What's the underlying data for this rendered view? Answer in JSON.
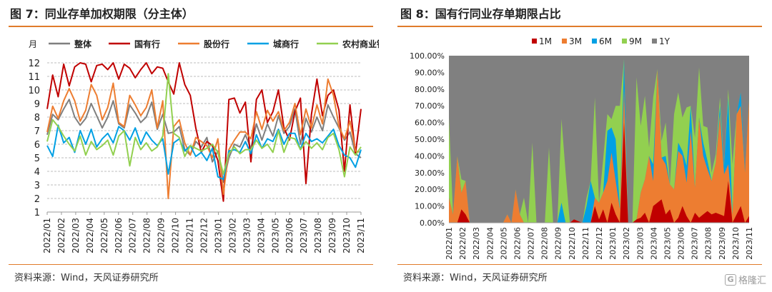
{
  "left": {
    "title": "图 7：同业存单加权期限（分主体）",
    "source": "资料来源：Wind，天风证券研究所"
  },
  "right": {
    "title": "图 8：国有行同业存单期限占比",
    "source": "资料来源：Wind，天风证券研究所"
  },
  "watermark": {
    "icon": "G",
    "text": "格隆汇"
  },
  "chart_data": [
    {
      "type": "line",
      "ylabel": "月",
      "ylim": [
        1,
        12
      ],
      "yticks": [
        1,
        2,
        3,
        4,
        5,
        6,
        7,
        8,
        9,
        10,
        11,
        12
      ],
      "grid": "horizontal-dashed",
      "legend_placement": "top",
      "x_ticks": [
        "2022/01",
        "2022/02",
        "2022/03",
        "2022/04",
        "2022/05",
        "2022/06",
        "2022/07",
        "2022/08",
        "2022/09",
        "2022/10",
        "2022/11",
        "2022/12",
        "2023/01",
        "2023/02",
        "2023/03",
        "2023/04",
        "2023/05",
        "2023/06",
        "2023/07",
        "2023/08",
        "2023/09",
        "2023/10",
        "2023/11"
      ],
      "series": [
        {
          "name": "整体",
          "color": "#7f7f7f",
          "values": [
            6.7,
            8.2,
            7.8,
            8.6,
            9.3,
            8.0,
            7.4,
            7.9,
            9.0,
            8.1,
            7.2,
            8.0,
            9.2,
            7.5,
            7.2,
            8.9,
            8.3,
            7.6,
            8.0,
            9.1,
            7.1,
            8.2,
            6.8,
            6.9,
            7.3,
            5.6,
            5.2,
            6.2,
            5.8,
            6.5,
            4.7,
            5.5,
            3.2,
            5.0,
            6.0,
            5.8,
            6.7,
            5.7,
            7.5,
            6.3,
            7.5,
            6.6,
            8.1,
            6.8,
            7.3,
            8.6,
            6.0,
            7.9,
            6.9,
            8.0,
            7.0,
            8.9,
            8.0,
            7.2,
            6.3,
            6.9,
            5.3,
            5.0
          ]
        },
        {
          "name": "国有行",
          "color": "#c00000",
          "values": [
            8.6,
            11.1,
            9.5,
            11.9,
            10.3,
            11.7,
            12.0,
            11.9,
            10.6,
            11.8,
            11.9,
            11.5,
            12.0,
            10.8,
            11.9,
            11.6,
            10.9,
            11.5,
            12.0,
            11.2,
            11.7,
            11.6,
            10.6,
            9.7,
            12.0,
            10.4,
            9.6,
            7.2,
            5.4,
            6.2,
            5.9,
            4.8,
            1.8,
            9.3,
            9.4,
            8.3,
            9.1,
            4.7,
            9.3,
            10.0,
            7.6,
            8.4,
            10.0,
            7.2,
            6.3,
            8.4,
            9.4,
            3.1,
            8.2,
            10.8,
            8.1,
            9.6,
            10.0,
            8.5,
            4.0,
            8.9,
            5.3,
            8.6
          ]
        },
        {
          "name": "股份行",
          "color": "#ed7d31",
          "values": [
            6.9,
            8.8,
            7.9,
            9.2,
            10.1,
            9.2,
            7.7,
            8.5,
            10.4,
            9.6,
            7.8,
            8.7,
            10.5,
            7.6,
            7.3,
            9.6,
            8.9,
            8.1,
            8.7,
            10.0,
            7.2,
            9.2,
            2.0,
            7.3,
            7.8,
            6.1,
            5.2,
            6.5,
            6.2,
            5.9,
            5.0,
            6.4,
            2.3,
            5.6,
            6.3,
            6.9,
            6.9,
            6.4,
            8.4,
            7.1,
            8.5,
            7.7,
            8.4,
            7.0,
            7.6,
            9.0,
            6.7,
            8.6,
            7.2,
            8.9,
            7.5,
            10.8,
            9.6,
            7.3,
            6.4,
            7.7,
            5.5,
            5.4
          ]
        },
        {
          "name": "城商行",
          "color": "#00a0e4",
          "values": [
            5.9,
            5.1,
            7.4,
            6.1,
            6.5,
            5.4,
            7.0,
            6.0,
            7.1,
            5.8,
            6.4,
            6.8,
            6.1,
            7.3,
            7.0,
            6.3,
            7.2,
            6.0,
            6.9,
            6.3,
            5.9,
            6.4,
            3.8,
            6.1,
            6.4,
            5.5,
            5.9,
            5.1,
            5.4,
            4.8,
            5.7,
            3.6,
            3.4,
            5.5,
            5.6,
            5.4,
            6.2,
            5.3,
            6.7,
            5.7,
            6.4,
            6.2,
            7.1,
            6.0,
            6.8,
            6.8,
            5.6,
            6.8,
            6.2,
            6.4,
            6.1,
            6.6,
            7.1,
            5.9,
            5.2,
            5.0,
            4.3,
            5.6
          ]
        },
        {
          "name": "农村商业银行",
          "color": "#92d050",
          "values": [
            6.2,
            7.8,
            7.3,
            6.6,
            6.0,
            5.5,
            6.6,
            5.2,
            6.2,
            5.6,
            5.9,
            6.3,
            5.2,
            6.6,
            7.0,
            4.4,
            6.5,
            5.6,
            6.1,
            5.5,
            5.8,
            6.6,
            11.2,
            6.8,
            6.5,
            5.1,
            5.9,
            5.7,
            5.5,
            5.7,
            6.0,
            5.4,
            3.8,
            5.3,
            5.8,
            5.3,
            5.6,
            5.6,
            6.3,
            5.7,
            6.0,
            5.4,
            7.0,
            5.4,
            6.5,
            6.4,
            5.6,
            6.2,
            5.7,
            6.1,
            5.6,
            6.5,
            6.8,
            5.6,
            3.6,
            5.8,
            5.2,
            5.8
          ]
        }
      ]
    },
    {
      "type": "area",
      "stacked": true,
      "ylim": [
        0,
        100
      ],
      "yticks": [
        "0.00%",
        "10.00%",
        "20.00%",
        "30.00%",
        "40.00%",
        "50.00%",
        "60.00%",
        "70.00%",
        "80.00%",
        "90.00%",
        "100.00%"
      ],
      "legend_placement": "top",
      "x_ticks": [
        "2022/01",
        "2022/02",
        "2022/03",
        "2022/04",
        "2022/05",
        "2022/06",
        "2022/07",
        "2022/08",
        "2022/09",
        "2022/10",
        "2022/11",
        "2022/12",
        "2023/01",
        "2023/02",
        "2023/03",
        "2023/04",
        "2023/05",
        "2023/06",
        "2023/07",
        "2023/08",
        "2023/09",
        "2023/10",
        "2023/11"
      ],
      "series": [
        {
          "name": "1M",
          "color": "#c00000",
          "values": [
            0,
            0,
            0,
            8,
            5,
            0,
            0,
            0,
            0,
            0,
            0,
            0,
            0,
            0,
            0,
            0,
            0,
            0,
            0,
            0,
            0,
            0,
            0,
            0,
            0,
            0,
            0,
            0,
            0,
            0,
            2,
            1,
            0,
            0,
            0,
            10,
            2,
            8,
            0,
            12,
            5,
            0,
            60,
            0,
            0,
            2,
            3,
            6,
            0,
            10,
            12,
            14,
            5,
            8,
            0,
            3,
            10,
            4,
            0,
            6,
            3,
            5,
            7,
            5,
            6,
            5,
            4,
            25,
            0,
            5,
            10,
            0,
            4
          ]
        },
        {
          "name": "3M",
          "color": "#ed7d31",
          "values": [
            15,
            5,
            40,
            10,
            20,
            0,
            0,
            0,
            0,
            0,
            0,
            0,
            0,
            0,
            5,
            0,
            20,
            5,
            0,
            0,
            0,
            0,
            0,
            0,
            0,
            0,
            0,
            0,
            0,
            0,
            0,
            0,
            0,
            0,
            0,
            5,
            10,
            10,
            25,
            30,
            20,
            8,
            20,
            0,
            0,
            0,
            15,
            20,
            40,
            15,
            80,
            25,
            30,
            15,
            20,
            40,
            30,
            20,
            55,
            15,
            60,
            35,
            25,
            20,
            30,
            60,
            25,
            10,
            5,
            60,
            60,
            30,
            70
          ]
        },
        {
          "name": "6M",
          "color": "#00a0e4",
          "values": [
            0,
            0,
            0,
            0,
            0,
            0,
            0,
            0,
            0,
            0,
            0,
            0,
            0,
            0,
            0,
            0,
            0,
            0,
            0,
            0,
            0,
            0,
            0,
            0,
            0,
            0,
            0,
            12,
            0,
            0,
            0,
            0,
            0,
            10,
            25,
            0,
            0,
            0,
            30,
            15,
            25,
            0,
            18,
            0,
            0,
            0,
            0,
            0,
            0,
            10,
            0,
            0,
            5,
            0,
            0,
            5,
            3,
            10,
            15,
            0,
            0,
            8,
            5,
            0,
            0,
            5,
            5,
            40,
            0,
            0,
            8,
            0,
            0
          ]
        },
        {
          "name": "9M",
          "color": "#92d050",
          "values": [
            48,
            0,
            0,
            8,
            0,
            0,
            0,
            0,
            0,
            0,
            0,
            0,
            0,
            0,
            0,
            0,
            0,
            0,
            15,
            0,
            48,
            0,
            0,
            0,
            45,
            0,
            0,
            50,
            30,
            0,
            0,
            0,
            0,
            5,
            0,
            60,
            0,
            20,
            10,
            5,
            20,
            62,
            0,
            0,
            0,
            85,
            40,
            50,
            5,
            40,
            0,
            10,
            20,
            0,
            45,
            30,
            20,
            35,
            0,
            30,
            30,
            10,
            20,
            5,
            5,
            5,
            0,
            5,
            30,
            0,
            0,
            0,
            0
          ]
        },
        {
          "name": "1Y",
          "color": "#808080",
          "values": null
        }
      ]
    }
  ]
}
